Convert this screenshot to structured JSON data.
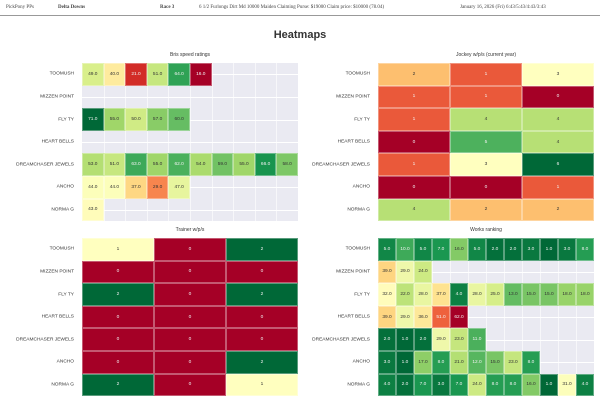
{
  "header": {
    "app": "PickPony PPs",
    "track": "Delta Downs",
    "race": "Race 3",
    "description": "6 1/2 Furlongs Dirt Md 10000 Maiden Claiming Purse: $19000 Claim price: $10000 (78.04)",
    "date": "January 16, 2026 (Fri) 6:43/5:43/4:43/3:43"
  },
  "page_title": "Heatmaps",
  "chart_data": [
    {
      "type": "heatmap",
      "title": "Bris speed ratings",
      "rows": [
        "TOOMUSH",
        "MIZZEN POINT",
        "FLY TY",
        "HEART BELLS",
        "DREAMCHASER JEWELS",
        "ANCHO",
        "NORMA G"
      ],
      "ncols": 10,
      "colormap": "RdYlGn",
      "vmin": 16,
      "vmax": 71,
      "decimals": 1,
      "values": [
        [
          49,
          40,
          21,
          51,
          64,
          16
        ],
        [],
        [
          71,
          55,
          50,
          57,
          60
        ],
        [],
        [
          53,
          51,
          63,
          55,
          62,
          54,
          59,
          55,
          66,
          58
        ],
        [
          44,
          44,
          37,
          29,
          47
        ],
        [
          43
        ]
      ]
    },
    {
      "type": "heatmap",
      "title": "Jockey w/p/s (current year)",
      "rows": [
        "TOOMUSH",
        "MIZZEN POINT",
        "FLY TY",
        "HEART BELLS",
        "DREAMCHASER JEWELS",
        "ANCHO",
        "NORMA G"
      ],
      "ncols": 3,
      "colormap": "RdYlGn",
      "vmin": 0,
      "vmax": 6,
      "decimals": 0,
      "values": [
        [
          2,
          1,
          3
        ],
        [
          1,
          1,
          0
        ],
        [
          1,
          4,
          4
        ],
        [
          0,
          5,
          4
        ],
        [
          1,
          3,
          6
        ],
        [
          0,
          0,
          1
        ],
        [
          4,
          2,
          2
        ]
      ]
    },
    {
      "type": "heatmap",
      "title": "Trainer w/p/s",
      "rows": [
        "TOOMUSH",
        "MIZZEN POINT",
        "FLY TY",
        "HEART BELLS",
        "DREAMCHASER JEWELS",
        "ANCHO",
        "NORMA G"
      ],
      "ncols": 3,
      "colormap": "RdYlGn",
      "vmin": 0,
      "vmax": 2,
      "decimals": 0,
      "values": [
        [
          1,
          0,
          2
        ],
        [
          0,
          0,
          0
        ],
        [
          2,
          0,
          2
        ],
        [
          0,
          0,
          0
        ],
        [
          0,
          0,
          0
        ],
        [
          0,
          0,
          2
        ],
        [
          2,
          0,
          1
        ]
      ]
    },
    {
      "type": "heatmap",
      "title": "Works ranking",
      "rows": [
        "TOOMUSH",
        "MIZZEN POINT",
        "FLY TY",
        "HEART BELLS",
        "DREAMCHASER JEWELS",
        "ANCHO",
        "NORMA G"
      ],
      "ncols": 12,
      "colormap": "RdYlGn_r",
      "vmin": 1,
      "vmax": 62,
      "decimals": 1,
      "values": [
        [
          5,
          10,
          5,
          7,
          16,
          5,
          2,
          2,
          3,
          1,
          3,
          8
        ],
        [
          39,
          29,
          24
        ],
        [
          32,
          22,
          28,
          37,
          4,
          28,
          25,
          13,
          15,
          15,
          18,
          18
        ],
        [
          39,
          29,
          36,
          51,
          62
        ],
        [
          2,
          1,
          2,
          29,
          23,
          11
        ],
        [
          3,
          1,
          17,
          8,
          21,
          12,
          15,
          23,
          8
        ],
        [
          4,
          2,
          7,
          3,
          7,
          24,
          8,
          8,
          16,
          1,
          31,
          4
        ]
      ]
    }
  ]
}
